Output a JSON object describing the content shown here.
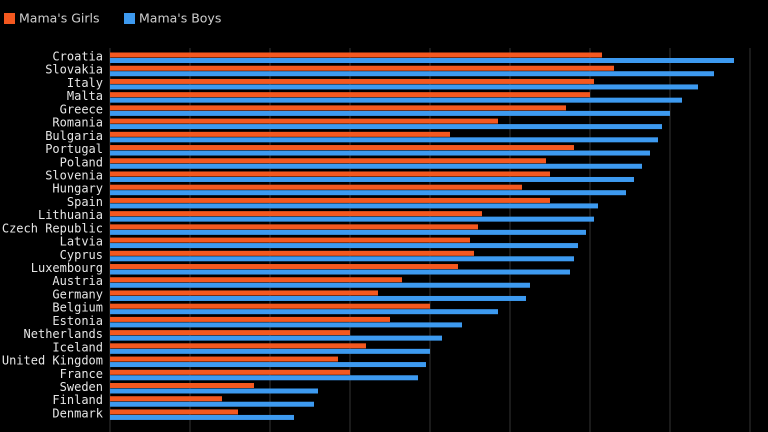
{
  "chart_data": {
    "type": "hbar",
    "categories": [
      "Croatia",
      "Slovakia",
      "Italy",
      "Malta",
      "Greece",
      "Romania",
      "Bulgaria",
      "Portugal",
      "Poland",
      "Slovenia",
      "Hungary",
      "Spain",
      "Lithuania",
      "Czech Republic",
      "Latvia",
      "Cyprus",
      "Luxembourg",
      "Austria",
      "Germany",
      "Belgium",
      "Estonia",
      "Netherlands",
      "Iceland",
      "United Kingdom",
      "France",
      "Sweden",
      "Finland",
      "Denmark"
    ],
    "series": [
      {
        "name": "Mama's Girls",
        "color": "#f4581f",
        "values": [
          61.5,
          63,
          60.5,
          60,
          57,
          48.5,
          42.5,
          58,
          54.5,
          55,
          51.5,
          55,
          46.5,
          46,
          45,
          45.5,
          43.5,
          36.5,
          33.5,
          40,
          35,
          30,
          32,
          28.5,
          30,
          18,
          14,
          16
        ]
      },
      {
        "name": "Mama's Boys",
        "color": "#3d9af0",
        "values": [
          78,
          75.5,
          73.5,
          71.5,
          70,
          69,
          68.5,
          67.5,
          66.5,
          65.5,
          64.5,
          61,
          60.5,
          59.5,
          58.5,
          58,
          57.5,
          52.5,
          52,
          48.5,
          44,
          41.5,
          40,
          39.5,
          38.5,
          26,
          25.5,
          23
        ]
      }
    ],
    "xlim": [
      0,
      80
    ],
    "xticks": [
      0,
      10,
      20,
      30,
      40,
      50,
      60,
      70,
      80
    ],
    "grid": true
  }
}
